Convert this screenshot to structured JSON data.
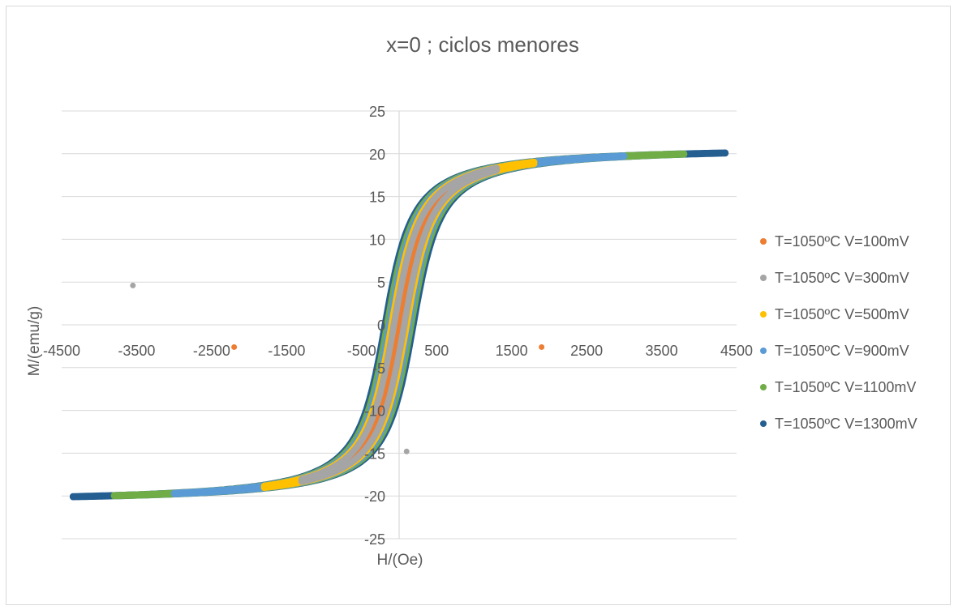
{
  "chart_data": {
    "type": "scatter",
    "title": "x=0 ; ciclos menores",
    "xlabel": "H/(Oe)",
    "ylabel": "M/(emu/g)",
    "xlim": [
      -4500,
      4500
    ],
    "ylim": [
      -25,
      25
    ],
    "x_ticks": [
      -4500,
      -3500,
      -2500,
      -1500,
      -500,
      500,
      1500,
      2500,
      3500,
      4500
    ],
    "y_ticks": [
      25,
      20,
      15,
      10,
      5,
      0,
      -5,
      -10,
      -15,
      -20,
      -25
    ],
    "grid": "horizontal",
    "legend": "right",
    "series": [
      {
        "name": "T=1050ºC V=100mV",
        "color": "#ED7D31",
        "h_max": 1300,
        "m_sat": 20.5,
        "h_coercive": 40,
        "outliers": [
          {
            "x": -2200,
            "y": -2.6
          },
          {
            "x": 1900,
            "y": -2.6
          }
        ]
      },
      {
        "name": "T=1050ºC V=300mV",
        "color": "#A5A5A5",
        "h_max": 1300,
        "m_sat": 20.5,
        "h_coercive": 70,
        "outliers": [
          {
            "x": -3550,
            "y": 4.6
          },
          {
            "x": 100,
            "y": -14.8
          }
        ]
      },
      {
        "name": "T=1050ºC V=500mV",
        "color": "#FFC000",
        "h_max": 1800,
        "m_sat": 20.5,
        "h_coercive": 100,
        "outliers": []
      },
      {
        "name": "T=1050ºC V=900mV",
        "color": "#5B9BD5",
        "h_max": 3000,
        "m_sat": 20.5,
        "h_coercive": 130,
        "outliers": []
      },
      {
        "name": "T=1050ºC V=1100mV",
        "color": "#70AD47",
        "h_max": 3800,
        "m_sat": 20.5,
        "h_coercive": 160,
        "outliers": []
      },
      {
        "name": "T=1050ºC V=1300mV",
        "color": "#255E91",
        "h_max": 4350,
        "m_sat": 20.5,
        "h_coercive": 190,
        "outliers": []
      }
    ]
  }
}
